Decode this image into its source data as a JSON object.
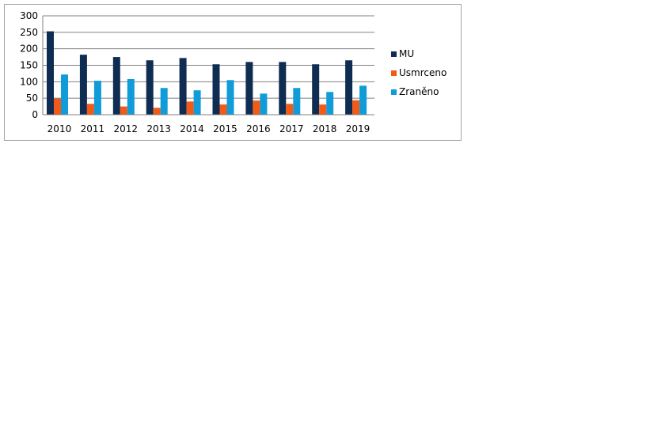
{
  "chart_data": {
    "type": "bar",
    "title": "",
    "xlabel": "",
    "ylabel": "",
    "categories": [
      "2010",
      "2011",
      "2012",
      "2013",
      "2014",
      "2015",
      "2016",
      "2017",
      "2018",
      "2019"
    ],
    "series": [
      {
        "name": "MU",
        "color": "#0f2d52",
        "values": [
          253,
          182,
          175,
          165,
          172,
          153,
          160,
          160,
          153,
          165
        ]
      },
      {
        "name": "Usmrceno",
        "color": "#f25b17",
        "values": [
          49,
          33,
          25,
          21,
          40,
          31,
          43,
          33,
          31,
          44
        ]
      },
      {
        "name": "Zraněno",
        "color": "#0f9cd8",
        "values": [
          122,
          103,
          108,
          81,
          74,
          105,
          64,
          81,
          69,
          88
        ]
      }
    ],
    "ylim": [
      0,
      300
    ],
    "yticks": [
      0,
      50,
      100,
      150,
      200,
      250,
      300
    ],
    "grid": true,
    "legend_position": "right"
  }
}
